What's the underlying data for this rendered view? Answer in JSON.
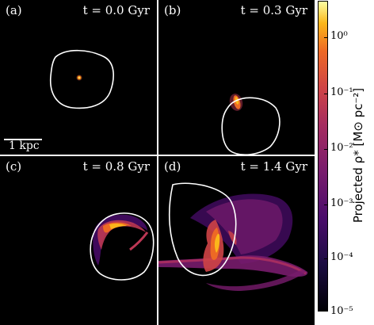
{
  "panels": [
    {
      "label": "(a)",
      "time": "t = 0.0 Gyr"
    },
    {
      "label": "(b)",
      "time": "t = 0.3 Gyr"
    },
    {
      "label": "(c)",
      "time": "t = 0.8 Gyr"
    },
    {
      "label": "(d)",
      "time": "t = 1.4 Gyr"
    }
  ],
  "scalebar": {
    "label": "1 kpc"
  },
  "colorbar": {
    "label": "Projected ρ* [M⊙ pc⁻²]",
    "ticks": [
      "10⁰",
      "10⁻¹",
      "10⁻²",
      "10⁻³",
      "10⁻⁴",
      "10⁻⁵"
    ],
    "colormap": "inferno"
  },
  "colors": {
    "background": "#000000",
    "ring": "#ffffff",
    "accent": "#f4c94b"
  }
}
